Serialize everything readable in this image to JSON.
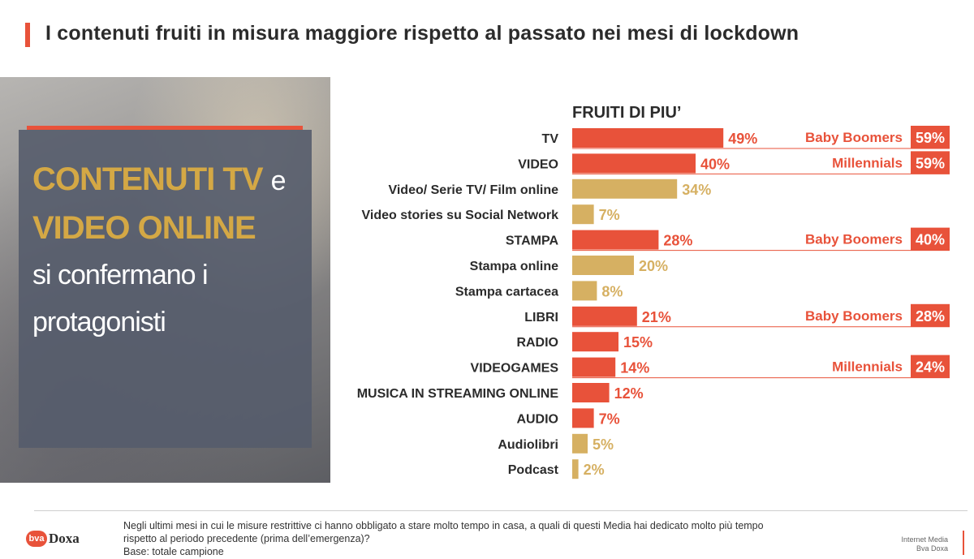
{
  "page": {
    "title": "I contenuti fruiti in misura maggiore rispetto al passato nei mesi di lockdown"
  },
  "panel": {
    "line1_gold": "CONTENUTI TV",
    "line1_white": "e",
    "line2_gold": "VIDEO ONLINE",
    "line3": "si confermano i",
    "line4": "protagonisti"
  },
  "chart_data": {
    "type": "bar",
    "orientation": "horizontal",
    "title": "FRUITI DI PIU’",
    "categories": [
      "TV",
      "VIDEO",
      "Video/ Serie TV/ Film online",
      "Video stories su Social Network",
      "STAMPA",
      "Stampa online",
      "Stampa cartacea",
      "LIBRI",
      "RADIO",
      "VIDEOGAMES",
      "MUSICA IN STREAMING ONLINE",
      "AUDIO",
      "Audiolibri",
      "Podcast"
    ],
    "values": [
      49,
      40,
      34,
      7,
      28,
      20,
      8,
      21,
      15,
      14,
      12,
      7,
      5,
      2
    ],
    "value_labels": [
      "49%",
      "40%",
      "34%",
      "7%",
      "28%",
      "20%",
      "8%",
      "21%",
      "15%",
      "14%",
      "12%",
      "7%",
      "5%",
      "2%"
    ],
    "bar_kind": [
      "main",
      "main",
      "sub",
      "sub",
      "main",
      "sub",
      "sub",
      "main",
      "main",
      "main",
      "main",
      "main",
      "sub",
      "sub"
    ],
    "unit": "%",
    "xlim": [
      0,
      100
    ],
    "callouts": [
      {
        "row": 0,
        "segment": "Baby Boomers",
        "value": "59%"
      },
      {
        "row": 1,
        "segment": "Millennials",
        "value": "59%"
      },
      {
        "row": 4,
        "segment": "Baby Boomers",
        "value": "40%"
      },
      {
        "row": 7,
        "segment": "Baby Boomers",
        "value": "28%"
      },
      {
        "row": 9,
        "segment": "Millennials",
        "value": "24%"
      }
    ],
    "colors": {
      "main": "#e8523a",
      "sub": "#d6b062",
      "text": "#2b2b2b"
    }
  },
  "footer": {
    "logo_mark": "bva",
    "logo_text": "Doxa",
    "note_line1": "Negli ultimi mesi in cui le misure restrittive ci hanno obbligato a stare molto tempo in casa, a quali di questi Media hai dedicato molto più tempo",
    "note_line2": "rispetto al periodo precedente (prima dell’emergenza)?",
    "note_line3": "Base: totale campione",
    "brand_line1": "Internet Media",
    "brand_line2": "Bva Doxa"
  }
}
